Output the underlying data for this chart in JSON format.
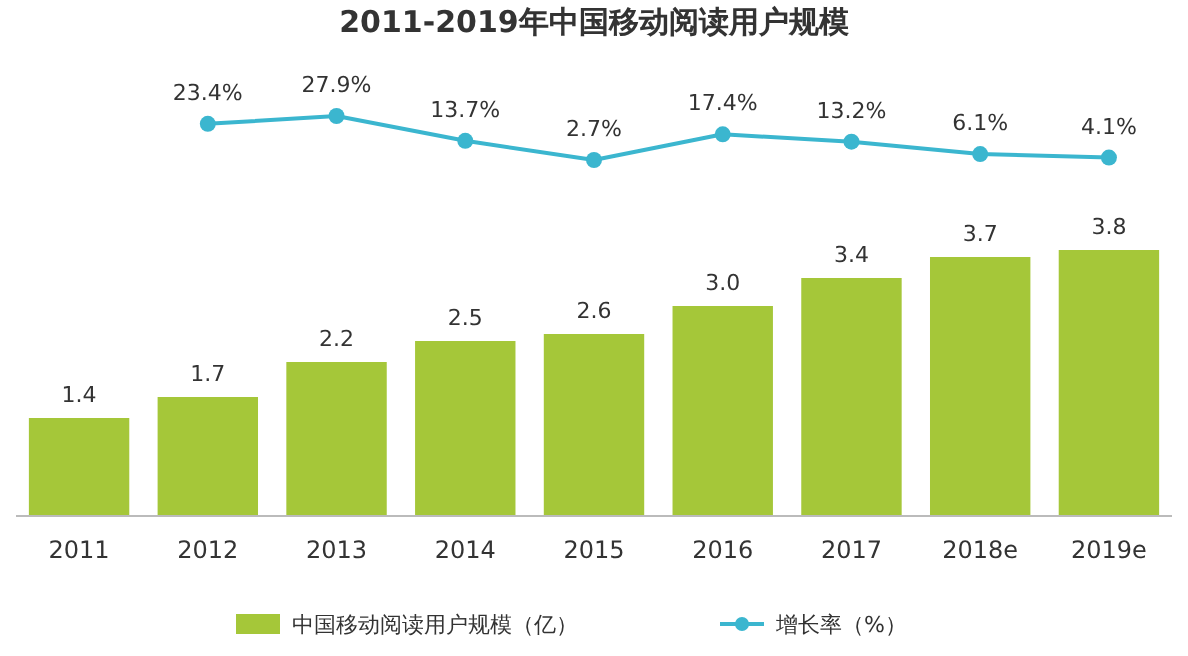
{
  "chart_data": [
    {
      "type": "line",
      "title": "2011-2019年中国移动阅读用户规模",
      "categories": [
        null,
        null,
        null,
        null,
        null,
        null,
        null,
        null,
        null
      ],
      "series": [
        {
          "name": "增长率（%）",
          "color": "#3bb6cf",
          "values": [
            null,
            23.4,
            27.9,
            13.7,
            2.7,
            17.4,
            13.2,
            6.1,
            4.1
          ],
          "value_labels": [
            null,
            "23.4%",
            "27.9%",
            "13.7%",
            "2.7%",
            "17.4%",
            "13.2%",
            "6.1%",
            "4.1%"
          ]
        }
      ],
      "tick_labels": "x",
      "legend": "bottom",
      "marker": "circle"
    },
    {
      "type": "bar",
      "categories": [
        "2011",
        "2012",
        "2013",
        "2014",
        "2015",
        "2016",
        "2017",
        "2018e",
        "2019e"
      ],
      "series": [
        {
          "name": "中国移动阅读用户规模（亿）",
          "color": "#a5c739",
          "values": [
            1.4,
            1.7,
            2.2,
            2.5,
            2.6,
            3.0,
            3.4,
            3.7,
            3.8
          ],
          "value_labels": [
            "1.4",
            "1.7",
            "2.2",
            "2.5",
            "2.6",
            "3.0",
            "3.4",
            "3.7",
            "3.8"
          ]
        }
      ],
      "tick_labels": "x",
      "legend": "bottom"
    }
  ]
}
